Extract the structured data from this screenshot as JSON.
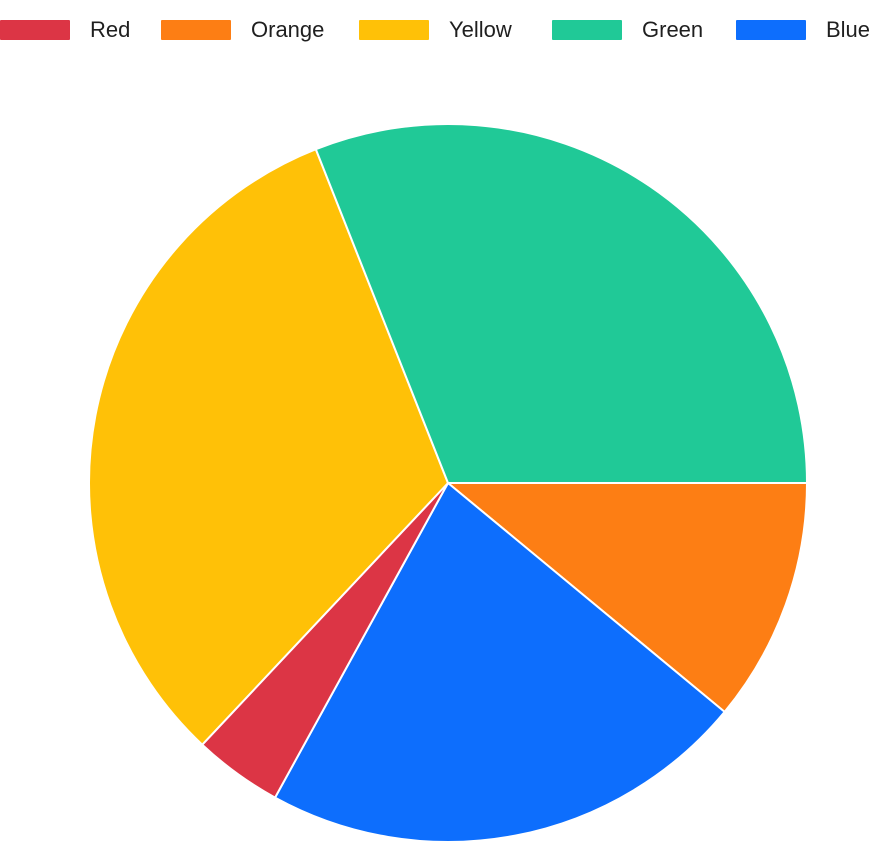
{
  "chart_data": {
    "type": "pie",
    "title": "",
    "categories": [
      "Red",
      "Orange",
      "Yellow",
      "Green",
      "Blue"
    ],
    "values": [
      4,
      11,
      32,
      31,
      22
    ],
    "colors": [
      "#dc3545",
      "#fd7e14",
      "#ffc107",
      "#20c997",
      "#0d6efd"
    ],
    "legend": {
      "position": "top",
      "entries": [
        "Red",
        "Orange",
        "Yellow",
        "Green",
        "Blue"
      ]
    },
    "slice_order_clockwise_from_3_oclock": [
      "Orange",
      "Blue",
      "Red",
      "Yellow",
      "Green"
    ],
    "slice_border_color": "#ffffff"
  }
}
